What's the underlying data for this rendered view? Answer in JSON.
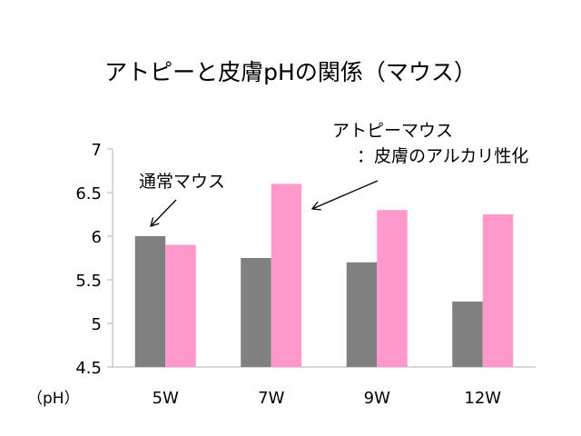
{
  "chart_data": {
    "type": "bar",
    "title": "アトピーと皮膚pHの関係（マウス）",
    "ylabel": "（pH）",
    "xlabel": "",
    "categories": [
      "5W",
      "7W",
      "9W",
      "12W"
    ],
    "ylim": [
      4.5,
      7
    ],
    "yticks": [
      "4.5",
      "5",
      "5.5",
      "6",
      "6.5",
      "7"
    ],
    "grid": false,
    "series": [
      {
        "name": "通常マウス",
        "color": "#808080",
        "values": [
          6.0,
          5.75,
          5.7,
          5.25
        ]
      },
      {
        "name": "アトピーマウス",
        "color": "#ff99cc",
        "values": [
          5.9,
          6.6,
          6.3,
          6.25
        ]
      }
    ],
    "annotations": {
      "normal": "通常マウス",
      "atopy_line1": "アトピーマウス",
      "atopy_line2": "：皮膚のアルカリ性化"
    }
  }
}
